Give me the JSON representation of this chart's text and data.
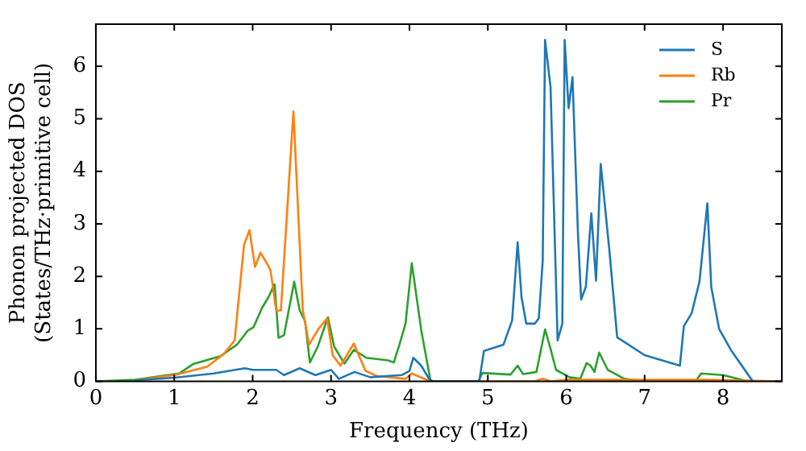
{
  "chart_data": {
    "type": "line",
    "xlabel": "Frequency (THz)",
    "ylabel": "Phonon projected DOS\n(States/THz·primitive cell)",
    "xlim": [
      0,
      8.75
    ],
    "ylim": [
      0,
      6.8
    ],
    "xticks": [
      0,
      1,
      2,
      3,
      4,
      5,
      6,
      7,
      8
    ],
    "yticks": [
      0,
      1,
      2,
      3,
      4,
      5,
      6
    ],
    "grid": false,
    "legend": "top right",
    "marker": "none",
    "line_style": "solid",
    "series": [
      {
        "name": "S",
        "color": "#1f77b4",
        "x": [
          0.5,
          1,
          1.5,
          1.9,
          2.0,
          2.3,
          2.4,
          2.6,
          2.8,
          3.0,
          3.1,
          3.3,
          3.5,
          3.9,
          4.0,
          4.05,
          4.15,
          4.25,
          4.3,
          4.89,
          4.95,
          5.2,
          5.31,
          5.38,
          5.43,
          5.49,
          5.6,
          5.65,
          5.7,
          5.73,
          5.8,
          5.89,
          5.95,
          5.98,
          6.03,
          6.08,
          6.15,
          6.19,
          6.25,
          6.32,
          6.38,
          6.44,
          6.55,
          6.65,
          7.0,
          7.45,
          7.5,
          7.6,
          7.7,
          7.8,
          7.85,
          7.95,
          8.1,
          8.38
        ],
        "values": [
          0.02,
          0.07,
          0.15,
          0.25,
          0.22,
          0.22,
          0.12,
          0.25,
          0.12,
          0.22,
          0.05,
          0.18,
          0.08,
          0.12,
          0.2,
          0.45,
          0.3,
          0.05,
          0,
          0,
          0.58,
          0.7,
          1.16,
          2.65,
          1.6,
          1.1,
          1.1,
          1.2,
          2.3,
          6.5,
          5.6,
          0.78,
          1.1,
          6.5,
          5.2,
          5.79,
          2.8,
          1.56,
          1.8,
          3.2,
          1.92,
          4.14,
          2.5,
          0.84,
          0.5,
          0.3,
          1.05,
          1.3,
          1.9,
          3.39,
          1.8,
          1.0,
          0.6,
          0
        ]
      },
      {
        "name": "Rb",
        "color": "#ff7f0e",
        "x": [
          0.5,
          1,
          1.42,
          1.63,
          1.77,
          1.89,
          1.96,
          2.03,
          2.1,
          2.2,
          2.23,
          2.3,
          2.36,
          2.52,
          2.64,
          2.72,
          2.84,
          2.95,
          3.02,
          3.12,
          3.29,
          3.44,
          3.59,
          3.95,
          4.03,
          4.27,
          5.6,
          5.7,
          5.8,
          6.0,
          7.8,
          8.75
        ],
        "values": [
          0.02,
          0.12,
          0.28,
          0.52,
          0.78,
          2.6,
          2.88,
          2.18,
          2.45,
          2.2,
          2.1,
          1.35,
          1.35,
          5.14,
          1.35,
          0.7,
          1.0,
          1.2,
          0.5,
          0.3,
          0.72,
          0.2,
          0.1,
          0.05,
          0.15,
          0,
          0,
          0.05,
          0,
          0.03,
          0.03,
          0
        ]
      },
      {
        "name": "Pr",
        "color": "#2ca02c",
        "x": [
          0,
          0.5,
          1.06,
          1.24,
          1.59,
          1.8,
          1.94,
          2.01,
          2.12,
          2.2,
          2.28,
          2.33,
          2.4,
          2.53,
          2.6,
          2.67,
          2.73,
          2.83,
          2.96,
          3.04,
          3.17,
          3.29,
          3.45,
          3.73,
          3.8,
          3.87,
          3.95,
          4.03,
          4.15,
          4.27,
          4.88,
          4.93,
          5.29,
          5.38,
          5.45,
          5.62,
          5.73,
          5.8,
          5.87,
          6.04,
          6.18,
          6.26,
          6.31,
          6.36,
          6.42,
          6.53,
          6.74,
          7.0,
          7.65,
          7.72,
          8.0,
          8.32,
          8.75
        ],
        "values": [
          0,
          0.03,
          0.15,
          0.33,
          0.48,
          0.7,
          0.97,
          1.03,
          1.4,
          1.6,
          1.85,
          0.83,
          0.88,
          1.9,
          1.35,
          1.14,
          0.36,
          0.66,
          1.22,
          0.66,
          0.34,
          0.6,
          0.45,
          0.4,
          0.36,
          0.69,
          1.1,
          2.25,
          0.98,
          0,
          0,
          0.16,
          0.13,
          0.3,
          0.14,
          0.18,
          0.99,
          0.62,
          0.22,
          0.08,
          0.05,
          0.35,
          0.3,
          0.18,
          0.55,
          0.22,
          0.05,
          0,
          0,
          0.15,
          0.12,
          0,
          0
        ]
      }
    ]
  }
}
